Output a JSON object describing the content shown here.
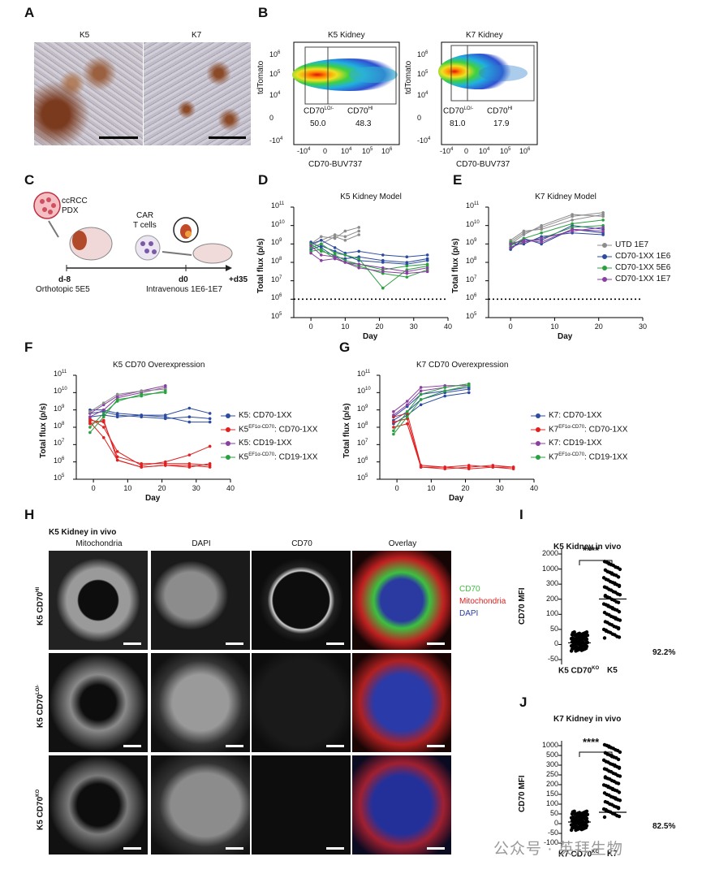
{
  "panel_letters": {
    "A": "A",
    "B": "B",
    "C": "C",
    "D": "D",
    "E": "E",
    "F": "F",
    "G": "G",
    "H": "H",
    "I": "I",
    "J": "J"
  },
  "panel_a": {
    "left_label": "K5",
    "right_label": "K7"
  },
  "panel_b": {
    "plots": [
      {
        "title": "K5 Kidney",
        "lo_label": "CD70",
        "lo_sup": "LO/-",
        "hi_label": "CD70",
        "hi_sup": "HI",
        "lo_value": "50.0",
        "hi_value": "48.3"
      },
      {
        "title": "K7 Kidney",
        "lo_label": "CD70",
        "lo_sup": "LO/-",
        "hi_label": "CD70",
        "hi_sup": "HI",
        "lo_value": "81.0",
        "hi_value": "17.9"
      }
    ],
    "ylabel": "tdTomato",
    "xlabel": "CD70-BUV737",
    "y_ticks": [
      "10",
      "10",
      "10",
      "0",
      "-10"
    ],
    "y_sups": [
      "6",
      "5",
      "4",
      "",
      "4"
    ],
    "x_ticks": [
      "-10",
      "0",
      "10",
      "10",
      "10"
    ],
    "x_sups": [
      "4",
      "",
      "4",
      "5",
      "6"
    ]
  },
  "panel_c": {
    "tumor_label_1": "ccRCC",
    "tumor_label_2": "PDX",
    "car_label_1": "CAR",
    "car_label_2": "T cells",
    "t1": "d-8",
    "t2": "d0",
    "t3": "+d35",
    "t1_desc": "Orthotopic 5E5",
    "t2_desc": "Intravenous 1E6-1E7"
  },
  "chart_data": [
    {
      "panel": "D",
      "type": "line",
      "title": "K5 Kidney Model",
      "xlabel": "Day",
      "ylabel": "Total flux (p/s)",
      "ylim_log10": [
        5,
        11
      ],
      "xlim": [
        -5,
        40
      ],
      "x_ticks": [
        0,
        10,
        20,
        30,
        40
      ],
      "y_ticks": [
        "10",
        "10",
        "10",
        "10",
        "10",
        "10",
        "10"
      ],
      "y_sups": [
        "11",
        "10",
        "9",
        "8",
        "7",
        "6",
        "5"
      ],
      "threshold_log10": 6,
      "series": [
        {
          "color": "#8c8c8c",
          "x": [
            0,
            3,
            7,
            10,
            14
          ],
          "y": [
            9.0,
            9.4,
            9.3,
            9.7,
            9.9
          ]
        },
        {
          "color": "#8c8c8c",
          "x": [
            0,
            3,
            7,
            10,
            14
          ],
          "y": [
            8.9,
            9.2,
            9.5,
            9.4,
            9.7
          ]
        },
        {
          "color": "#8c8c8c",
          "x": [
            0,
            3,
            7,
            10,
            14
          ],
          "y": [
            8.8,
            9.0,
            9.4,
            9.2,
            9.5
          ]
        },
        {
          "color": "#2b4aa0",
          "x": [
            0,
            3,
            7,
            10,
            14,
            21,
            28,
            34
          ],
          "y": [
            9.0,
            9.2,
            8.8,
            8.5,
            8.6,
            8.4,
            8.3,
            8.4
          ]
        },
        {
          "color": "#2b4aa0",
          "x": [
            0,
            3,
            7,
            10,
            14,
            21,
            28,
            34
          ],
          "y": [
            9.1,
            8.8,
            8.3,
            8.2,
            8.3,
            8.1,
            8.0,
            8.2
          ]
        },
        {
          "color": "#2b4aa0",
          "x": [
            0,
            3,
            7,
            10,
            14,
            21,
            28,
            34
          ],
          "y": [
            8.7,
            8.9,
            8.6,
            8.4,
            8.1,
            8.0,
            7.9,
            8.1
          ]
        },
        {
          "color": "#2aa040",
          "x": [
            0,
            3,
            7,
            10,
            14,
            21,
            28,
            34
          ],
          "y": [
            8.8,
            9.0,
            8.5,
            8.4,
            8.2,
            6.6,
            7.6,
            7.8
          ]
        },
        {
          "color": "#2aa040",
          "x": [
            0,
            3,
            7,
            10,
            14,
            21,
            28,
            34
          ],
          "y": [
            9.0,
            8.6,
            8.4,
            8.1,
            7.9,
            7.6,
            7.8,
            7.9
          ]
        },
        {
          "color": "#2aa040",
          "x": [
            0,
            3,
            7,
            10,
            14,
            21,
            28,
            34
          ],
          "y": [
            8.6,
            8.7,
            8.2,
            8.0,
            7.8,
            7.4,
            7.2,
            7.6
          ]
        },
        {
          "color": "#8a3ea0",
          "x": [
            0,
            3,
            7,
            10,
            14,
            21,
            28,
            34
          ],
          "y": [
            8.5,
            8.1,
            8.2,
            8.0,
            7.9,
            7.7,
            7.5,
            7.7
          ]
        },
        {
          "color": "#8a3ea0",
          "x": [
            0,
            3,
            7,
            10,
            14,
            21,
            28,
            34
          ],
          "y": [
            8.9,
            8.4,
            8.3,
            8.0,
            7.7,
            7.5,
            7.4,
            7.5
          ]
        }
      ]
    },
    {
      "panel": "E",
      "type": "line",
      "title": "K7 Kidney Model",
      "xlabel": "Day",
      "ylabel": "Total flux (p/s)",
      "ylim_log10": [
        5,
        11
      ],
      "xlim": [
        -5,
        30
      ],
      "x_ticks": [
        0,
        10,
        20,
        30
      ],
      "y_ticks": [
        "10",
        "10",
        "10",
        "10",
        "10",
        "10",
        "10"
      ],
      "y_sups": [
        "11",
        "10",
        "9",
        "8",
        "7",
        "6",
        "5"
      ],
      "threshold_log10": 6,
      "legend": [
        "UTD 1E7",
        "CD70-1XX 1E6",
        "CD70-1XX 5E6",
        "CD70-1XX 1E7"
      ],
      "legend_colors": [
        "#8c8c8c",
        "#2b4aa0",
        "#2aa040",
        "#8a3ea0"
      ],
      "series": [
        {
          "color": "#8c8c8c",
          "x": [
            0,
            3,
            7,
            14,
            21
          ],
          "y": [
            9.1,
            9.6,
            9.9,
            10.5,
            10.7
          ]
        },
        {
          "color": "#8c8c8c",
          "x": [
            0,
            3,
            7,
            14,
            21
          ],
          "y": [
            9.0,
            9.5,
            10.0,
            10.6,
            10.5
          ]
        },
        {
          "color": "#8c8c8c",
          "x": [
            0,
            3,
            7,
            14,
            21
          ],
          "y": [
            9.2,
            9.7,
            9.8,
            10.3,
            10.6
          ]
        },
        {
          "color": "#2b4aa0",
          "x": [
            0,
            3,
            7,
            14,
            21
          ],
          "y": [
            8.8,
            9.2,
            9.2,
            10.0,
            9.8
          ]
        },
        {
          "color": "#2b4aa0",
          "x": [
            0,
            3,
            7,
            14,
            21
          ],
          "y": [
            9.0,
            9.0,
            9.4,
            9.6,
            9.5
          ]
        },
        {
          "color": "#2b4aa0",
          "x": [
            0,
            3,
            7,
            14,
            21
          ],
          "y": [
            8.7,
            9.3,
            9.0,
            9.8,
            9.6
          ]
        },
        {
          "color": "#2aa040",
          "x": [
            0,
            3,
            7,
            14,
            21
          ],
          "y": [
            8.9,
            9.3,
            9.6,
            10.1,
            10.3
          ]
        },
        {
          "color": "#2aa040",
          "x": [
            0,
            3,
            7,
            14,
            21
          ],
          "y": [
            9.1,
            9.1,
            9.3,
            9.9,
            10.0
          ]
        },
        {
          "color": "#8a3ea0",
          "x": [
            0,
            3,
            7,
            14,
            21
          ],
          "y": [
            8.8,
            9.1,
            9.3,
            9.7,
            9.9
          ]
        },
        {
          "color": "#8a3ea0",
          "x": [
            0,
            3,
            7,
            14,
            21
          ],
          "y": [
            9.0,
            9.2,
            9.1,
            9.8,
            9.7
          ]
        }
      ]
    },
    {
      "panel": "F",
      "type": "line",
      "title": "K5 CD70 Overexpression",
      "xlabel": "Day",
      "ylabel": "Total flux (p/s)",
      "ylim_log10": [
        5,
        11
      ],
      "xlim": [
        -5,
        40
      ],
      "x_ticks": [
        0,
        10,
        20,
        30,
        40
      ],
      "y_ticks": [
        "10",
        "10",
        "10",
        "10",
        "10",
        "10",
        "10"
      ],
      "y_sups": [
        "11",
        "10",
        "9",
        "8",
        "7",
        "6",
        "5"
      ],
      "legend": [
        {
          "pre": "K5",
          "sup": "",
          "post": ": CD70-1XX"
        },
        {
          "pre": "K5",
          "sup": "EF1α-CD70",
          "post": ": CD70-1XX"
        },
        {
          "pre": "K5",
          "sup": "",
          "post": ": CD19-1XX"
        },
        {
          "pre": "K5",
          "sup": "EF1α-CD70",
          "post": ": CD19-1XX"
        }
      ],
      "legend_colors": [
        "#2b4aa0",
        "#e02020",
        "#8a3ea0",
        "#2aa040"
      ],
      "series": [
        {
          "color": "#2b4aa0",
          "x": [
            -1,
            3,
            7,
            14,
            21,
            28,
            34
          ],
          "y": [
            9.0,
            9.0,
            8.8,
            8.7,
            8.7,
            9.1,
            8.8
          ]
        },
        {
          "color": "#2b4aa0",
          "x": [
            -1,
            3,
            7,
            14,
            21,
            28,
            34
          ],
          "y": [
            8.8,
            8.9,
            8.7,
            8.6,
            8.5,
            8.6,
            8.5
          ]
        },
        {
          "color": "#2b4aa0",
          "x": [
            -1,
            3,
            7,
            14,
            21,
            28,
            34
          ],
          "y": [
            8.6,
            8.7,
            8.6,
            8.7,
            8.6,
            8.3,
            8.3
          ]
        },
        {
          "color": "#e02020",
          "x": [
            -1,
            3,
            7,
            14,
            21,
            28,
            34
          ],
          "y": [
            8.4,
            8.3,
            6.3,
            5.9,
            5.9,
            5.9,
            5.8
          ]
        },
        {
          "color": "#e02020",
          "x": [
            -1,
            3,
            7,
            14,
            21,
            28,
            34
          ],
          "y": [
            8.2,
            8.4,
            6.1,
            5.7,
            5.8,
            5.8,
            5.7
          ]
        },
        {
          "color": "#e02020",
          "x": [
            -1,
            3,
            7,
            14,
            21,
            28,
            34
          ],
          "y": [
            8.5,
            8.0,
            6.6,
            5.8,
            6.0,
            6.4,
            6.9
          ]
        },
        {
          "color": "#e02020",
          "x": [
            -1,
            3,
            7,
            14,
            21,
            28,
            34
          ],
          "y": [
            8.3,
            7.4,
            6.1,
            5.7,
            5.8,
            5.7,
            5.9
          ]
        },
        {
          "color": "#8a3ea0",
          "x": [
            -1,
            3,
            7,
            14,
            21
          ],
          "y": [
            8.8,
            9.3,
            9.8,
            10.1,
            10.4
          ]
        },
        {
          "color": "#8a3ea0",
          "x": [
            -1,
            3,
            7,
            14,
            21
          ],
          "y": [
            8.6,
            9.0,
            9.7,
            10.0,
            10.3
          ]
        },
        {
          "color": "#8c8c8c",
          "x": [
            -1,
            3,
            7,
            14,
            21
          ],
          "y": [
            8.9,
            9.4,
            9.9,
            10.1,
            10.2
          ]
        },
        {
          "color": "#2aa040",
          "x": [
            -1,
            3,
            7,
            14,
            21
          ],
          "y": [
            8.0,
            8.8,
            9.5,
            9.9,
            10.0
          ]
        },
        {
          "color": "#2aa040",
          "x": [
            -1,
            3,
            7,
            14,
            21
          ],
          "y": [
            7.7,
            8.6,
            9.6,
            9.8,
            10.1
          ]
        }
      ]
    },
    {
      "panel": "G",
      "type": "line",
      "title": "K7 CD70 Overexpression",
      "xlabel": "Day",
      "ylabel": "Total flux (p/s)",
      "ylim_log10": [
        5,
        11
      ],
      "xlim": [
        -5,
        40
      ],
      "x_ticks": [
        0,
        10,
        20,
        30,
        40
      ],
      "y_ticks": [
        "10",
        "10",
        "10",
        "10",
        "10",
        "10",
        "10"
      ],
      "y_sups": [
        "11",
        "10",
        "9",
        "8",
        "7",
        "6",
        "5"
      ],
      "legend": [
        {
          "pre": "K7",
          "sup": "",
          "post": ": CD70-1XX"
        },
        {
          "pre": "K7",
          "sup": "EF1α-CD70",
          "post": ": CD70-1XX"
        },
        {
          "pre": "K7",
          "sup": "",
          "post": ": CD19-1XX"
        },
        {
          "pre": "K7",
          "sup": "EF1α-CD70",
          "post": ": CD19-1XX"
        }
      ],
      "legend_colors": [
        "#2b4aa0",
        "#e02020",
        "#8a3ea0",
        "#2aa040"
      ],
      "series": [
        {
          "color": "#2b4aa0",
          "x": [
            -1,
            3,
            7,
            14,
            21
          ],
          "y": [
            8.6,
            9.2,
            9.9,
            10.1,
            10.3
          ]
        },
        {
          "color": "#2b4aa0",
          "x": [
            -1,
            3,
            7,
            14,
            21
          ],
          "y": [
            8.4,
            8.9,
            9.6,
            10.0,
            10.2
          ]
        },
        {
          "color": "#2b4aa0",
          "x": [
            -1,
            3,
            7,
            14,
            21
          ],
          "y": [
            8.2,
            8.7,
            9.3,
            9.8,
            10.0
          ]
        },
        {
          "color": "#e02020",
          "x": [
            -1,
            3,
            7,
            14,
            21,
            28,
            34
          ],
          "y": [
            8.6,
            8.8,
            5.8,
            5.7,
            5.8,
            5.7,
            5.7
          ]
        },
        {
          "color": "#e02020",
          "x": [
            -1,
            3,
            7,
            14,
            21,
            28,
            34
          ],
          "y": [
            8.3,
            8.5,
            5.7,
            5.6,
            5.7,
            5.8,
            5.7
          ]
        },
        {
          "color": "#e02020",
          "x": [
            -1,
            3,
            7,
            14,
            21,
            28,
            34
          ],
          "y": [
            8.0,
            8.2,
            5.7,
            5.7,
            5.6,
            5.7,
            5.6
          ]
        },
        {
          "color": "#8a3ea0",
          "x": [
            -1,
            3,
            7,
            14,
            21
          ],
          "y": [
            8.9,
            9.5,
            10.3,
            10.4,
            10.4
          ]
        },
        {
          "color": "#8a3ea0",
          "x": [
            -1,
            3,
            7,
            14,
            21
          ],
          "y": [
            8.7,
            9.3,
            10.1,
            10.3,
            10.5
          ]
        },
        {
          "color": "#2aa040",
          "x": [
            -1,
            3,
            7,
            14,
            21
          ],
          "y": [
            7.8,
            8.9,
            9.9,
            10.3,
            10.5
          ]
        },
        {
          "color": "#2aa040",
          "x": [
            -1,
            3,
            7,
            14,
            21
          ],
          "y": [
            7.6,
            8.6,
            9.6,
            10.1,
            10.4
          ]
        }
      ]
    },
    {
      "panel": "I",
      "type": "scatter",
      "title": "K5 Kidney in vivo",
      "ylabel": "CD70 MFI",
      "categories": [
        "K5 CD70",
        "K5"
      ],
      "cat_sups": [
        "KO",
        ""
      ],
      "y_ticks": [
        "2000",
        "1000",
        "300",
        "200",
        "100",
        "50",
        "0",
        "-50"
      ],
      "significance": "****",
      "percent": "92.2%",
      "medians": [
        10,
        138
      ]
    },
    {
      "panel": "J",
      "type": "scatter",
      "title": "K7 Kidney in vivo",
      "ylabel": "CD70 MFI",
      "categories": [
        "K7 CD70",
        "K7"
      ],
      "cat_sups": [
        "KO",
        ""
      ],
      "y_ticks": [
        "1000",
        "500",
        "300",
        "250",
        "200",
        "150",
        "100",
        "50",
        "0",
        "-50",
        "-100"
      ],
      "significance": "****",
      "percent": "82.5%",
      "medians": [
        -5,
        25
      ]
    }
  ],
  "panel_h": {
    "title": "K5 Kidney in vivo",
    "columns": [
      "Mitochondria",
      "DAPI",
      "CD70",
      "Overlay"
    ],
    "rows": [
      {
        "pre": "K5 CD70",
        "sup": "HI"
      },
      {
        "pre": "K5 CD70",
        "sup": "LO/-"
      },
      {
        "pre": "K5 CD70",
        "sup": "KO"
      }
    ],
    "legend": [
      {
        "text": "CD70",
        "color": "#3cc040"
      },
      {
        "text": "Mitochondria",
        "color": "#e02020"
      },
      {
        "text": "DAPI",
        "color": "#2b3da0"
      }
    ]
  },
  "watermark": "公众号 · 英拜生物"
}
